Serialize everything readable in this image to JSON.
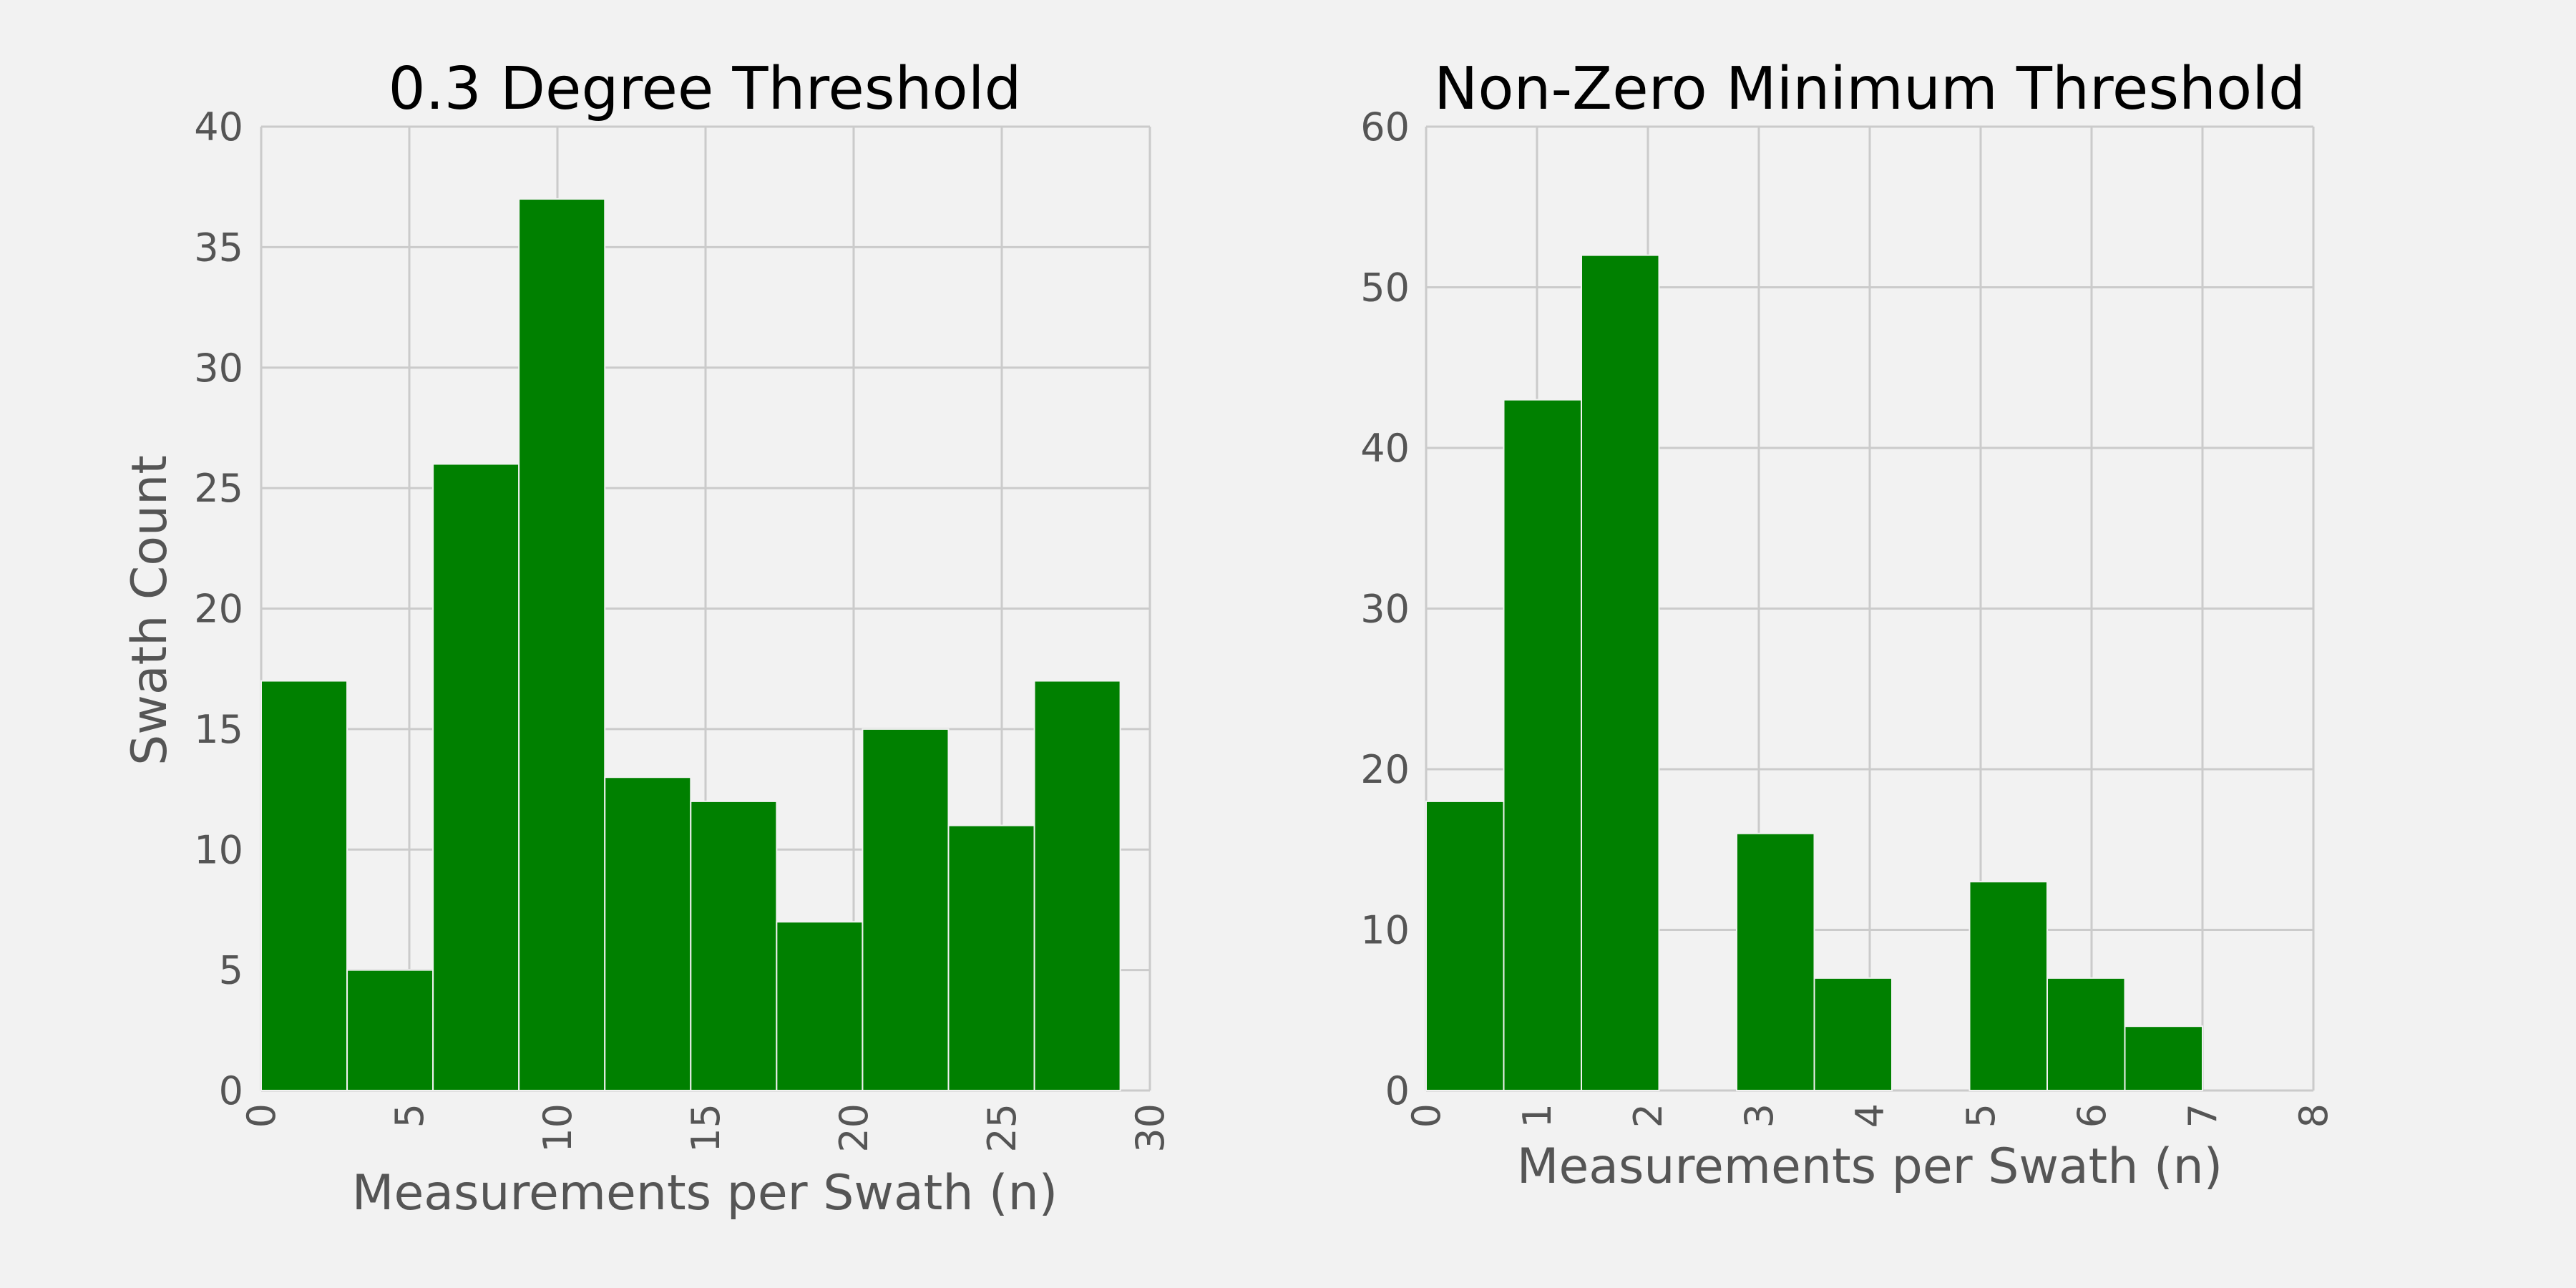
{
  "figure": {
    "background": "#f2f2f2",
    "bar_color": "#008000",
    "grid_color": "#cbcbcb",
    "text_color": "#555555"
  },
  "chart_data": [
    {
      "type": "bar",
      "title": "0.3 Degree Threshold",
      "xlabel": "Measurements per Swath (n)",
      "ylabel": "Swath Count",
      "xlim": [
        0,
        30
      ],
      "ylim": [
        0,
        40
      ],
      "xticks": [
        0,
        5,
        10,
        15,
        20,
        25,
        30
      ],
      "yticks": [
        0,
        5,
        10,
        15,
        20,
        25,
        30,
        35,
        40
      ],
      "grid": true,
      "bins": [
        {
          "x0": 0.0,
          "x1": 2.9,
          "count": 17
        },
        {
          "x0": 2.9,
          "x1": 5.8,
          "count": 5
        },
        {
          "x0": 5.8,
          "x1": 8.7,
          "count": 26
        },
        {
          "x0": 8.7,
          "x1": 11.6,
          "count": 37
        },
        {
          "x0": 11.6,
          "x1": 14.5,
          "count": 13
        },
        {
          "x0": 14.5,
          "x1": 17.4,
          "count": 12
        },
        {
          "x0": 17.4,
          "x1": 20.3,
          "count": 7
        },
        {
          "x0": 20.3,
          "x1": 23.2,
          "count": 15
        },
        {
          "x0": 23.2,
          "x1": 26.1,
          "count": 11
        },
        {
          "x0": 26.1,
          "x1": 29.0,
          "count": 17
        }
      ]
    },
    {
      "type": "bar",
      "title": "Non-Zero Minimum Threshold",
      "xlabel": "Measurements per Swath (n)",
      "ylabel": "",
      "xlim": [
        0,
        8
      ],
      "ylim": [
        0,
        60
      ],
      "xticks": [
        0,
        1,
        2,
        3,
        4,
        5,
        6,
        7,
        8
      ],
      "yticks": [
        0,
        10,
        20,
        30,
        40,
        50,
        60
      ],
      "grid": true,
      "bins": [
        {
          "x0": 0.0,
          "x1": 0.7,
          "count": 18
        },
        {
          "x0": 0.7,
          "x1": 1.4,
          "count": 43
        },
        {
          "x0": 1.4,
          "x1": 2.1,
          "count": 52
        },
        {
          "x0": 2.1,
          "x1": 2.8,
          "count": 0
        },
        {
          "x0": 2.8,
          "x1": 3.5,
          "count": 16
        },
        {
          "x0": 3.5,
          "x1": 4.2,
          "count": 7
        },
        {
          "x0": 4.2,
          "x1": 4.9,
          "count": 0
        },
        {
          "x0": 4.9,
          "x1": 5.6,
          "count": 13
        },
        {
          "x0": 5.6,
          "x1": 6.3,
          "count": 7
        },
        {
          "x0": 6.3,
          "x1": 7.0,
          "count": 4
        }
      ]
    }
  ]
}
